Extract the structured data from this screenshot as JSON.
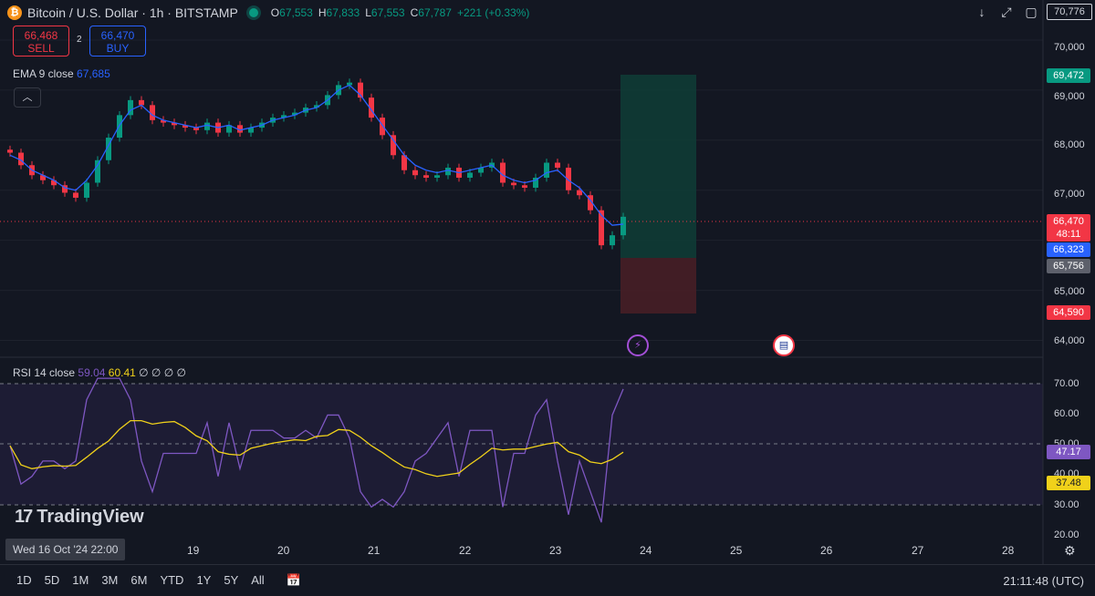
{
  "header": {
    "symbol": "Bitcoin / U.S. Dollar · 1h · BITSTAMP",
    "btc_icon": "₿",
    "ohlc": [
      {
        "k": "O",
        "v": "67,553"
      },
      {
        "k": "H",
        "v": "67,833"
      },
      {
        "k": "L",
        "v": "67,553"
      },
      {
        "k": "C",
        "v": "67,787"
      }
    ],
    "change": "+221 (+0.33%)"
  },
  "trade": {
    "sell_price": "66,468",
    "sell_label": "SELL",
    "spread": "2",
    "buy_price": "66,470",
    "buy_label": "BUY"
  },
  "ema": {
    "label": "EMA 9 close",
    "value": "67,685"
  },
  "rsi": {
    "label": "RSI 14 close",
    "value1": "59.04",
    "value2": "60.41",
    "extra": "∅ ∅ ∅ ∅"
  },
  "branding": {
    "text": "TradingView",
    "mark": "17"
  },
  "price_axis": {
    "labels": [
      "70,000",
      "69,000",
      "68,000",
      "67,000",
      "65,000",
      "64,000"
    ],
    "rsi_labels": [
      "70.00",
      "60.00",
      "50.00",
      "40.00",
      "30.00",
      "20.00"
    ]
  },
  "tags": {
    "top": "70,776",
    "target": "69,472",
    "last": "66,470",
    "countdown": "48:11",
    "ema_tag": "66,323",
    "entry": "65,756",
    "stop": "64,590",
    "rsi_a": "47.17",
    "rsi_b": "37.48"
  },
  "time_axis": {
    "cursor": "Wed 16 Oct '24   22:00",
    "dates": [
      "19",
      "20",
      "21",
      "22",
      "23",
      "24",
      "25",
      "26",
      "27",
      "28"
    ]
  },
  "timeframes": [
    "1D",
    "5D",
    "1M",
    "3M",
    "6M",
    "YTD",
    "1Y",
    "5Y",
    "All"
  ],
  "clock": "21:11:48 (UTC)",
  "colors": {
    "up": "#089981",
    "down": "#f23645",
    "ema": "#2962ff",
    "rsi": "#7e57c2",
    "rsi_ma": "#f0d11a"
  },
  "chart_data": {
    "type": "candlestick",
    "symbol": "BTCUSD",
    "interval": "1h",
    "ylim": [
      63700,
      70800
    ],
    "series": [
      {
        "name": "EMA 9 close",
        "values": [
          67700,
          67600,
          67400,
          67300,
          67200,
          67050,
          67000,
          67200,
          67500,
          67900,
          68300,
          68600,
          68700,
          68500,
          68400,
          68350,
          68300,
          68250,
          68300,
          68250,
          68300,
          68200,
          68250,
          68300,
          68400,
          68450,
          68500,
          68600,
          68650,
          68800,
          69000,
          69100,
          68900,
          68600,
          68300,
          68000,
          67700,
          67500,
          67400,
          67350,
          67400,
          67350,
          67400,
          67450,
          67500,
          67300,
          67200,
          67150,
          67200,
          67350,
          67400,
          67200,
          67050,
          66800,
          66500,
          66300,
          66323
        ]
      }
    ],
    "candles_close": [
      67750,
      67500,
      67300,
      67200,
      67100,
      66950,
      66850,
      67150,
      67600,
      68050,
      68500,
      68800,
      68700,
      68400,
      68350,
      68300,
      68250,
      68200,
      68350,
      68150,
      68300,
      68150,
      68250,
      68350,
      68450,
      68500,
      68550,
      68650,
      68700,
      68900,
      69100,
      69150,
      68850,
      68450,
      68100,
      67700,
      67400,
      67300,
      67250,
      67300,
      67450,
      67250,
      67350,
      67450,
      67550,
      67150,
      67100,
      67050,
      67250,
      67550,
      67450,
      67000,
      66900,
      66600,
      65900,
      66100,
      66470
    ],
    "rsi": {
      "ylim": [
        20,
        75
      ],
      "levels": [
        70,
        50,
        30
      ]
    }
  }
}
